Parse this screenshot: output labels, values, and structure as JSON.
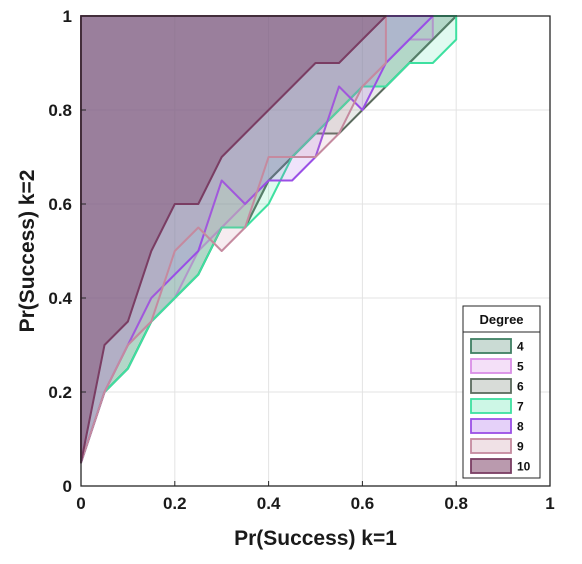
{
  "chart_data": {
    "type": "area",
    "xlabel": "Pr(Success) k=1",
    "ylabel": "Pr(Success) k=2",
    "xlim": [
      0,
      1
    ],
    "ylim": [
      0,
      1
    ],
    "xticks": [
      "0",
      "0.2",
      "0.4",
      "0.6",
      "0.8",
      "1"
    ],
    "yticks": [
      "0",
      "0.2",
      "0.4",
      "0.6",
      "0.8",
      "1"
    ],
    "xtick_values": [
      0,
      0.2,
      0.4,
      0.6,
      0.8,
      1
    ],
    "ytick_values": [
      0,
      0.2,
      0.4,
      0.6,
      0.8,
      1
    ],
    "grid": true,
    "legend_title": "Degree",
    "legend_position": "bottom-right",
    "series": [
      {
        "name": "4",
        "color": "#3f7f63",
        "opacity": 0.18,
        "x": [
          0,
          0.05,
          0.1,
          0.15,
          0.2,
          0.25,
          0.3,
          0.35,
          0.4,
          0.45,
          0.5,
          0.55,
          0.6,
          0.65,
          0.7,
          0.75,
          0.8,
          0.8,
          0.7,
          0
        ],
        "y": [
          0.05,
          0.2,
          0.25,
          0.35,
          0.4,
          0.45,
          0.55,
          0.55,
          0.65,
          0.7,
          0.75,
          0.8,
          0.85,
          0.85,
          0.9,
          0.95,
          1,
          1,
          1,
          1
        ]
      },
      {
        "name": "5",
        "color": "#d98ee6",
        "opacity": 0.18,
        "x": [
          0,
          0.05,
          0.1,
          0.15,
          0.2,
          0.25,
          0.3,
          0.35,
          0.4,
          0.45,
          0.5,
          0.55,
          0.6,
          0.65,
          0.7,
          0.75,
          0.75,
          0.7,
          0
        ],
        "y": [
          0.05,
          0.2,
          0.3,
          0.35,
          0.4,
          0.5,
          0.55,
          0.6,
          0.65,
          0.7,
          0.75,
          0.8,
          0.85,
          0.9,
          0.95,
          0.95,
          1,
          1,
          1
        ]
      },
      {
        "name": "6",
        "color": "#5b6b5e",
        "opacity": 0.14,
        "x": [
          0,
          0.05,
          0.1,
          0.15,
          0.2,
          0.25,
          0.3,
          0.35,
          0.4,
          0.45,
          0.5,
          0.55,
          0.6,
          0.65,
          0.7,
          0.75,
          0.8,
          0.8,
          0
        ],
        "y": [
          0.05,
          0.2,
          0.25,
          0.35,
          0.4,
          0.45,
          0.55,
          0.55,
          0.65,
          0.7,
          0.75,
          0.75,
          0.8,
          0.85,
          0.9,
          0.95,
          1,
          1,
          1
        ]
      },
      {
        "name": "7",
        "color": "#3ee0a0",
        "opacity": 0.16,
        "x": [
          0,
          0.05,
          0.1,
          0.15,
          0.2,
          0.25,
          0.3,
          0.35,
          0.4,
          0.45,
          0.5,
          0.55,
          0.6,
          0.65,
          0.7,
          0.75,
          0.8,
          0.8,
          0
        ],
        "y": [
          0.05,
          0.2,
          0.25,
          0.35,
          0.4,
          0.45,
          0.55,
          0.55,
          0.6,
          0.7,
          0.75,
          0.8,
          0.85,
          0.85,
          0.9,
          0.9,
          0.95,
          1,
          1
        ]
      },
      {
        "name": "8",
        "color": "#9a4fe6",
        "opacity": 0.16,
        "x": [
          0,
          0.05,
          0.1,
          0.15,
          0.2,
          0.25,
          0.3,
          0.35,
          0.4,
          0.45,
          0.5,
          0.55,
          0.6,
          0.65,
          0.7,
          0.75,
          0.75,
          0
        ],
        "y": [
          0.05,
          0.2,
          0.3,
          0.4,
          0.45,
          0.5,
          0.65,
          0.6,
          0.65,
          0.65,
          0.7,
          0.85,
          0.8,
          0.9,
          0.95,
          1,
          1,
          1
        ]
      },
      {
        "name": "9",
        "color": "#c58a9f",
        "opacity": 0.16,
        "x": [
          0,
          0.05,
          0.1,
          0.15,
          0.2,
          0.25,
          0.3,
          0.35,
          0.4,
          0.45,
          0.5,
          0.55,
          0.6,
          0.65,
          0.65,
          0
        ],
        "y": [
          0.05,
          0.2,
          0.3,
          0.35,
          0.5,
          0.55,
          0.5,
          0.55,
          0.7,
          0.7,
          0.7,
          0.75,
          0.85,
          0.9,
          1,
          1
        ]
      },
      {
        "name": "10",
        "color": "#7a3d63",
        "opacity": 0.42,
        "x": [
          0,
          0,
          0.05,
          0.1,
          0.15,
          0.2,
          0.25,
          0.3,
          0.35,
          0.4,
          0.45,
          0.5,
          0.55,
          0.6,
          0.65,
          0.65,
          0
        ],
        "y": [
          0.05,
          0.05,
          0.3,
          0.35,
          0.5,
          0.6,
          0.6,
          0.7,
          0.75,
          0.8,
          0.85,
          0.9,
          0.9,
          0.95,
          1,
          1,
          1
        ]
      }
    ]
  }
}
